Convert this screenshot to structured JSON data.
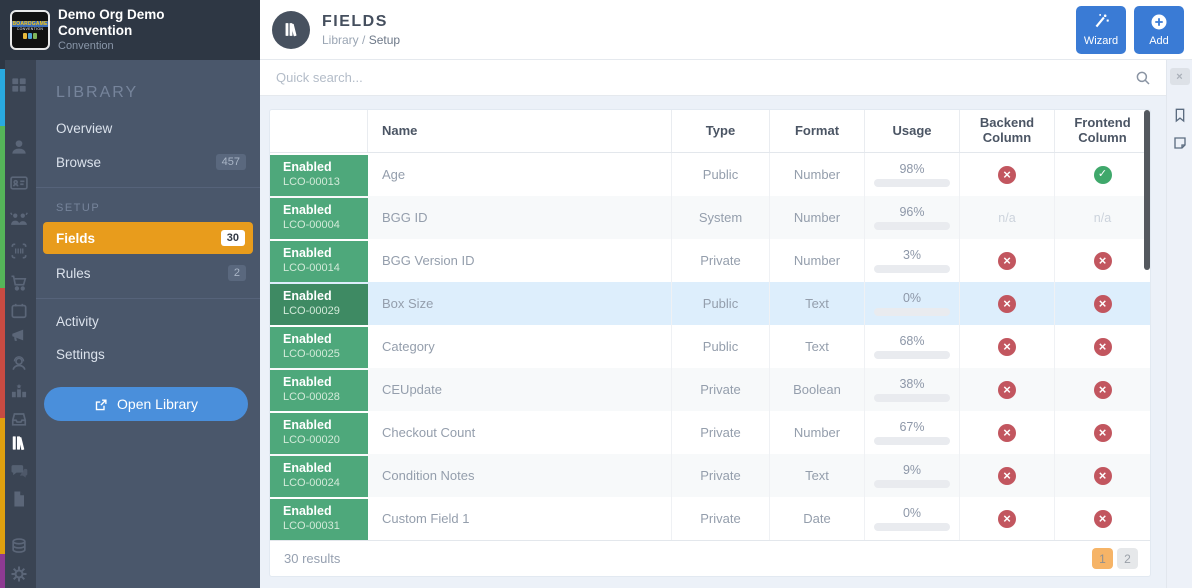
{
  "colors": {
    "accent_blue": "#3a7bd5",
    "sidebar_active_orange": "#e89c1c",
    "badge_green": "#4ea87b",
    "badge_green_dark": "#3e8a63",
    "usage_bar_blue": "#3c7edb",
    "x_red": "#c2565f",
    "check_green": "#3fa86b",
    "page_active_orange": "#f6b467",
    "highlight_row": "#ddeefc",
    "rail_strip": [
      "#29aae1",
      "#55b559",
      "#c84b42",
      "#dfa00f",
      "#8e3a92"
    ]
  },
  "org": {
    "title": "Demo Org Demo Convention",
    "subtitle": "Convention",
    "logo_line1": "BOARDGAME",
    "logo_line2": "CONVENTION"
  },
  "rail_icons": [
    "dashboard-grid-icon",
    "person-icon",
    "id-badge-icon",
    "people-icon",
    "barcode-scan-icon",
    "cart-icon",
    "calendar-icon",
    "megaphone-icon",
    "support-agent-icon",
    "podium-icon",
    "inbox-tray-icon",
    "library-books-icon",
    "chat-bubbles-icon",
    "document-icon",
    "coins-icon",
    "gear-icon"
  ],
  "sidebar": {
    "library_heading": "LIBRARY",
    "overview_label": "Overview",
    "browse_label": "Browse",
    "browse_count": "457",
    "setup_heading": "SETUP",
    "fields_label": "Fields",
    "fields_count": "30",
    "rules_label": "Rules",
    "rules_count": "2",
    "activity_label": "Activity",
    "settings_label": "Settings",
    "open_library_label": "Open Library"
  },
  "header": {
    "page_title": "FIELDS",
    "breadcrumb_root": "Library",
    "breadcrumb_sep": "/",
    "breadcrumb_current": "Setup",
    "wizard_label": "Wizard",
    "add_label": "Add"
  },
  "search": {
    "placeholder": "Quick search..."
  },
  "table": {
    "columns": [
      "Name",
      "Type",
      "Format",
      "Usage",
      "Backend Column",
      "Frontend Column"
    ],
    "na_label": "n/a",
    "rows": [
      {
        "status": "Enabled",
        "code": "LCO-00013",
        "name": "Age",
        "type": "Public",
        "format": "Number",
        "usage": 98,
        "usage_label": "98%",
        "backend": "no",
        "frontend": "yes",
        "highlight": false
      },
      {
        "status": "Enabled",
        "code": "LCO-00004",
        "name": "BGG ID",
        "type": "System",
        "format": "Number",
        "usage": 96,
        "usage_label": "96%",
        "backend": "na",
        "frontend": "na",
        "highlight": false
      },
      {
        "status": "Enabled",
        "code": "LCO-00014",
        "name": "BGG Version ID",
        "type": "Private",
        "format": "Number",
        "usage": 3,
        "usage_label": "3%",
        "backend": "no",
        "frontend": "no",
        "highlight": false
      },
      {
        "status": "Enabled",
        "code": "LCO-00029",
        "name": "Box Size",
        "type": "Public",
        "format": "Text",
        "usage": 0,
        "usage_label": "0%",
        "backend": "no",
        "frontend": "no",
        "highlight": true
      },
      {
        "status": "Enabled",
        "code": "LCO-00025",
        "name": "Category",
        "type": "Public",
        "format": "Text",
        "usage": 68,
        "usage_label": "68%",
        "backend": "no",
        "frontend": "no",
        "highlight": false
      },
      {
        "status": "Enabled",
        "code": "LCO-00028",
        "name": "CEUpdate",
        "type": "Private",
        "format": "Boolean",
        "usage": 38,
        "usage_label": "38%",
        "backend": "no",
        "frontend": "no",
        "highlight": false
      },
      {
        "status": "Enabled",
        "code": "LCO-00020",
        "name": "Checkout Count",
        "type": "Private",
        "format": "Number",
        "usage": 67,
        "usage_label": "67%",
        "backend": "no",
        "frontend": "no",
        "highlight": false
      },
      {
        "status": "Enabled",
        "code": "LCO-00024",
        "name": "Condition Notes",
        "type": "Private",
        "format": "Text",
        "usage": 9,
        "usage_label": "9%",
        "backend": "no",
        "frontend": "no",
        "highlight": false
      },
      {
        "status": "Enabled",
        "code": "LCO-00031",
        "name": "Custom Field 1",
        "type": "Private",
        "format": "Date",
        "usage": 0,
        "usage_label": "0%",
        "backend": "no",
        "frontend": "no",
        "highlight": false
      }
    ],
    "footer": {
      "results": "30 results",
      "pages": [
        "1",
        "2"
      ],
      "active_page": "1"
    }
  },
  "right_rail": {
    "close_label": "×",
    "icons": [
      "bookmark-icon",
      "note-icon"
    ]
  }
}
